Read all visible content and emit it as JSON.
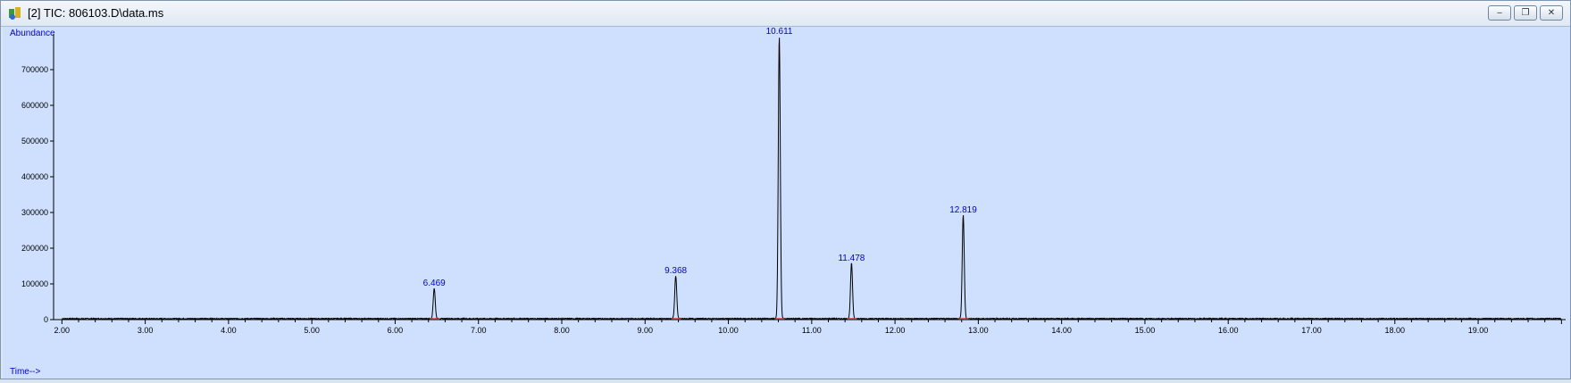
{
  "window": {
    "title": "[2] TIC: 806103.D\\data.ms",
    "buttons": {
      "minimize": "‒",
      "restore": "❐",
      "close": "✕"
    }
  },
  "colors": {
    "plot_bg": "#cfe0ff",
    "trace": "#000000",
    "label_blue": "#0000cc",
    "baseline_marker": "#d04040"
  },
  "chart_data": {
    "type": "line",
    "title": "",
    "ylabel": "Abundance",
    "xlabel": "Time-->",
    "xlim": [
      1.9,
      20.05
    ],
    "ylim": [
      0,
      800000
    ],
    "x_ticks": [
      "2.00",
      "3.00",
      "4.00",
      "5.00",
      "6.00",
      "7.00",
      "8.00",
      "9.00",
      "10.00",
      "11.00",
      "12.00",
      "13.00",
      "14.00",
      "15.00",
      "16.00",
      "17.00",
      "18.00",
      "19.00"
    ],
    "y_ticks": [
      "0",
      "100000",
      "200000",
      "300000",
      "400000",
      "500000",
      "600000",
      "700000"
    ],
    "peaks": [
      {
        "rt": 6.469,
        "abundance": 85000,
        "label": "6.469"
      },
      {
        "rt": 9.368,
        "abundance": 120000,
        "label": "9.368"
      },
      {
        "rt": 10.611,
        "abundance": 790000,
        "label": "10.611"
      },
      {
        "rt": 11.478,
        "abundance": 155000,
        "label": "11.478"
      },
      {
        "rt": 12.819,
        "abundance": 290000,
        "label": "12.819"
      }
    ],
    "grid": false
  }
}
